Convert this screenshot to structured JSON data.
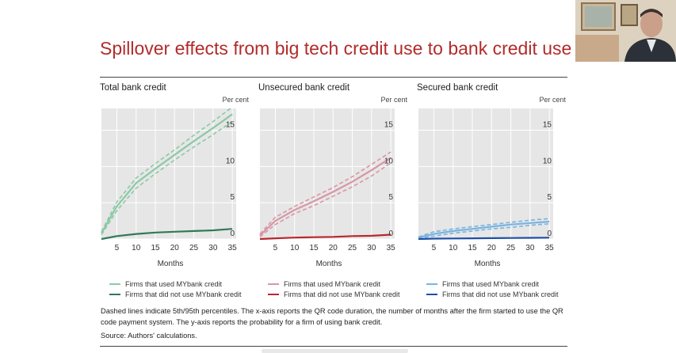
{
  "title": "Spillover effects from big tech credit use to bank credit use",
  "note": "Dashed lines indicate 5th/95th percentiles. The x-axis reports the QR code duration, the number of months after the firm started to use the QR code payment system. The y-axis reports the probability for a firm of using bank credit.",
  "source": "Source: Authors' calculations.",
  "chart_data": [
    {
      "type": "line",
      "title": "Total bank credit",
      "xlabel": "Months",
      "ylabel": "Per cent",
      "xlim": [
        1,
        36
      ],
      "ylim": [
        0,
        18
      ],
      "xticks": [
        5,
        10,
        15,
        20,
        25,
        30,
        35
      ],
      "yticks": [
        0,
        5,
        10,
        15
      ],
      "x": [
        1,
        5,
        10,
        15,
        20,
        25,
        30,
        35
      ],
      "series": [
        {
          "name": "Firms that used MYbank credit",
          "color": "#8cc9a6",
          "values": [
            0.8,
            4.5,
            7.7,
            9.7,
            11.6,
            13.5,
            15.3,
            17.2
          ],
          "lower": [
            0.6,
            3.9,
            7.0,
            9.0,
            10.9,
            12.7,
            14.4,
            16.2
          ],
          "upper": [
            1.0,
            5.1,
            8.4,
            10.4,
            12.3,
            14.3,
            16.2,
            18.2
          ]
        },
        {
          "name": "Firms that did not use MYbank credit",
          "color": "#2f7a57",
          "values": [
            0.0,
            0.4,
            0.7,
            0.9,
            1.0,
            1.1,
            1.2,
            1.4
          ]
        }
      ]
    },
    {
      "type": "line",
      "title": "Unsecured bank credit",
      "xlabel": "Months",
      "ylabel": "Per cent",
      "xlim": [
        1,
        36
      ],
      "ylim": [
        0,
        18
      ],
      "xticks": [
        5,
        10,
        15,
        20,
        25,
        30,
        35
      ],
      "yticks": [
        0,
        5,
        10,
        15
      ],
      "x": [
        1,
        5,
        10,
        15,
        20,
        25,
        30,
        35
      ],
      "series": [
        {
          "name": "Firms that used MYbank credit",
          "color": "#d896a4",
          "values": [
            0.5,
            2.5,
            4.0,
            5.2,
            6.5,
            7.9,
            9.5,
            11.2
          ],
          "lower": [
            0.3,
            2.0,
            3.5,
            4.6,
            5.9,
            7.2,
            8.7,
            10.5
          ],
          "upper": [
            0.7,
            3.0,
            4.5,
            5.8,
            7.1,
            8.6,
            10.3,
            12.0
          ]
        },
        {
          "name": "Firms that did not use MYbank credit",
          "color": "#b8282f",
          "values": [
            0.0,
            0.1,
            0.2,
            0.25,
            0.3,
            0.4,
            0.45,
            0.6
          ]
        }
      ]
    },
    {
      "type": "line",
      "title": "Secured bank credit",
      "xlabel": "Months",
      "ylabel": "Per cent",
      "xlim": [
        1,
        36
      ],
      "ylim": [
        0,
        18
      ],
      "xticks": [
        5,
        10,
        15,
        20,
        25,
        30,
        35
      ],
      "yticks": [
        0,
        5,
        10,
        15
      ],
      "x": [
        1,
        5,
        10,
        15,
        20,
        25,
        30,
        35
      ],
      "series": [
        {
          "name": "Firms that used MYbank credit",
          "color": "#79b4e0",
          "values": [
            0.2,
            0.7,
            1.1,
            1.4,
            1.7,
            2.0,
            2.2,
            2.4
          ],
          "lower": [
            0.1,
            0.4,
            0.8,
            1.1,
            1.4,
            1.6,
            1.9,
            2.1
          ],
          "upper": [
            0.3,
            1.0,
            1.4,
            1.7,
            2.0,
            2.3,
            2.6,
            2.8
          ]
        },
        {
          "name": "Firms that did not use MYbank credit",
          "color": "#1f4fa5",
          "values": [
            0.0,
            0.05,
            0.08,
            0.1,
            0.12,
            0.14,
            0.16,
            0.18
          ]
        }
      ]
    }
  ]
}
